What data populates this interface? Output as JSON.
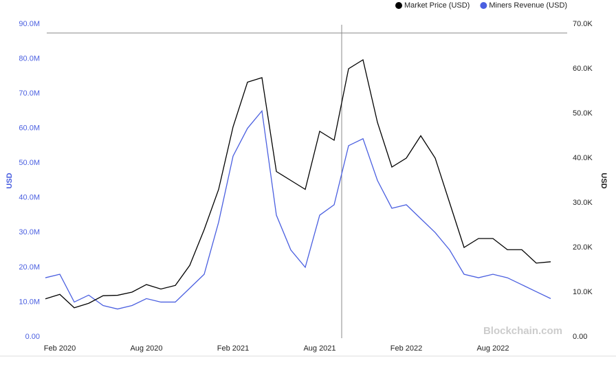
{
  "chart_data": {
    "type": "line",
    "categories": [
      "Jan 2020",
      "Feb 2020",
      "Mar 2020",
      "Apr 2020",
      "May 2020",
      "Jun 2020",
      "Jul 2020",
      "Aug 2020",
      "Sep 2020",
      "Oct 2020",
      "Nov 2020",
      "Dec 2020",
      "Jan 2021",
      "Feb 2021",
      "Mar 2021",
      "Apr 2021",
      "May 2021",
      "Jun 2021",
      "Jul 2021",
      "Aug 2021",
      "Sep 2021",
      "Oct 2021",
      "Nov 2021",
      "Dec 2021",
      "Jan 2022",
      "Feb 2022",
      "Mar 2022",
      "Apr 2022",
      "May 2022",
      "Jun 2022",
      "Jul 2022",
      "Aug 2022",
      "Sep 2022",
      "Oct 2022",
      "Nov 2022",
      "Dec 2022"
    ],
    "xticks": [
      "Feb 2020",
      "Aug 2020",
      "Feb 2021",
      "Aug 2021",
      "Feb 2022",
      "Aug 2022"
    ],
    "ylabel": "USD",
    "y2label": "USD",
    "ylim": [
      0,
      90000000
    ],
    "yticks": [
      {
        "value": 0,
        "label": "0.00"
      },
      {
        "value": 10000000,
        "label": "10.0M"
      },
      {
        "value": 20000000,
        "label": "20.0M"
      },
      {
        "value": 30000000,
        "label": "30.0M"
      },
      {
        "value": 40000000,
        "label": "40.0M"
      },
      {
        "value": 50000000,
        "label": "50.0M"
      },
      {
        "value": 60000000,
        "label": "60.0M"
      },
      {
        "value": 70000000,
        "label": "70.0M"
      },
      {
        "value": 80000000,
        "label": "80.0M"
      },
      {
        "value": 90000000,
        "label": "90.0M"
      }
    ],
    "y2lim": [
      0,
      70000
    ],
    "y2ticks": [
      {
        "value": 0,
        "label": "0.00"
      },
      {
        "value": 10000,
        "label": "10.0K"
      },
      {
        "value": 20000,
        "label": "20.0K"
      },
      {
        "value": 30000,
        "label": "30.0K"
      },
      {
        "value": 40000,
        "label": "40.0K"
      },
      {
        "value": 50000,
        "label": "50.0K"
      },
      {
        "value": 60000,
        "label": "60.0K"
      },
      {
        "value": 70000,
        "label": "70.0K"
      }
    ],
    "series": [
      {
        "name": "Market Price (USD)",
        "color": "#000000",
        "axis": "y2",
        "values": [
          8500,
          9500,
          6500,
          7500,
          9200,
          9300,
          10000,
          11700,
          10700,
          11500,
          16000,
          24000,
          33000,
          47000,
          57000,
          58000,
          37000,
          35000,
          33000,
          46000,
          44000,
          60000,
          62000,
          48000,
          38000,
          40000,
          45000,
          40000,
          30000,
          20000,
          22000,
          22000,
          19500,
          19500,
          16500,
          16800
        ]
      },
      {
        "name": "Miners Revenue (USD)",
        "color": "#4a5fe0",
        "values": [
          17000000,
          18000000,
          10000000,
          12000000,
          9000000,
          8000000,
          9000000,
          11000000,
          10000000,
          10000000,
          14000000,
          18000000,
          33000000,
          52000000,
          60000000,
          65000000,
          35000000,
          25000000,
          20000000,
          35000000,
          38000000,
          55000000,
          57000000,
          45000000,
          37000000,
          38000000,
          34000000,
          30000000,
          25000000,
          18000000,
          17000000,
          18000000,
          17000000,
          15000000,
          13000000,
          11000000
        ]
      }
    ],
    "watermark": "Blockchain.com"
  }
}
